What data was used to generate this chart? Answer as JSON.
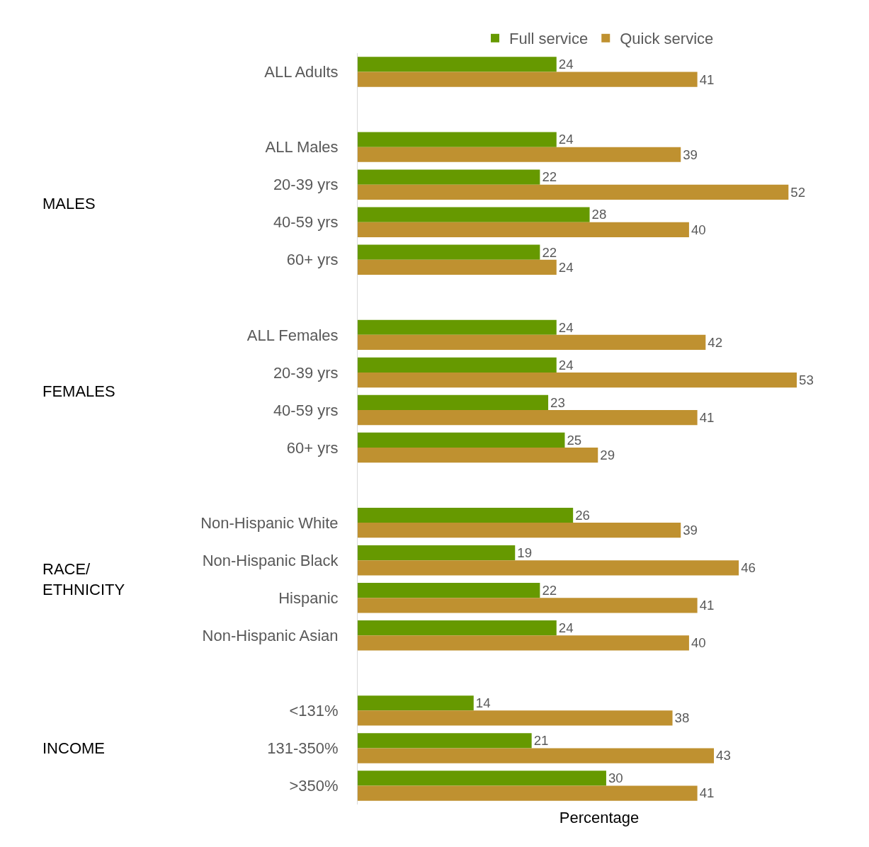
{
  "chart_data": {
    "type": "bar",
    "orientation": "horizontal",
    "xlabel": "Percentage",
    "categories": [
      "ALL Adults",
      null,
      "ALL Males",
      "20-39 yrs",
      "40-59 yrs",
      "60+ yrs",
      null,
      "ALL Females",
      "20-39 yrs",
      "40-59 yrs",
      "60+ yrs",
      null,
      "Non-Hispanic White",
      "Non-Hispanic Black",
      "Hispanic",
      "Non-Hispanic Asian",
      null,
      "<131%",
      "131-350%",
      ">350%"
    ],
    "series": [
      {
        "name": "Full service",
        "color": "#669900",
        "values": [
          24,
          null,
          24,
          22,
          28,
          22,
          null,
          24,
          24,
          23,
          25,
          null,
          26,
          19,
          22,
          24,
          null,
          14,
          21,
          30
        ]
      },
      {
        "name": "Quick service",
        "color": "#bf9130",
        "values": [
          41,
          null,
          39,
          52,
          40,
          24,
          null,
          42,
          53,
          41,
          29,
          null,
          39,
          46,
          41,
          40,
          null,
          38,
          43,
          41
        ]
      }
    ],
    "annotations": [
      "MALES",
      "FEMALES",
      "RACE/\nETHNICITY",
      "INCOME"
    ],
    "data_labels": true,
    "legend": "top"
  }
}
